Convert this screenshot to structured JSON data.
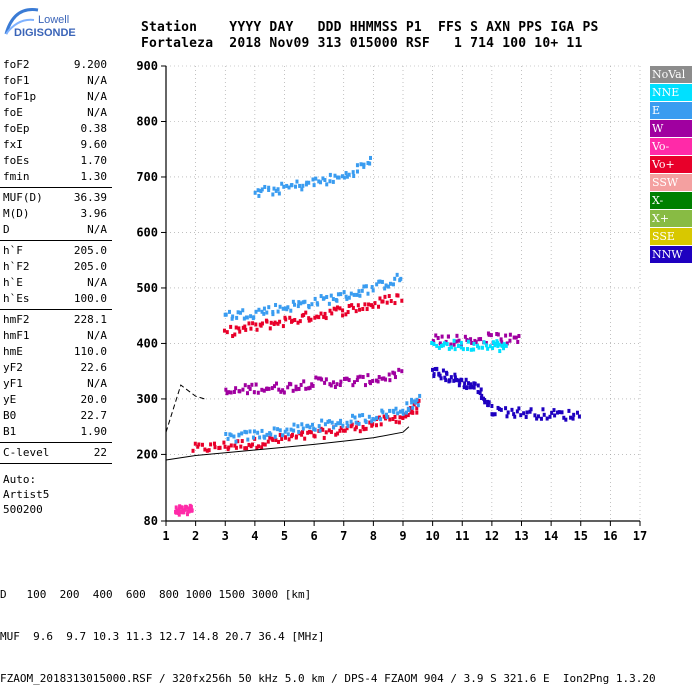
{
  "logo": {
    "line1": "Lowell",
    "line2": "DIGISONDE"
  },
  "header": {
    "labels": "Station    YYYY DAY   DDD HHMMSS P1  FFS S AXN PPS IGA PS",
    "values": "Fortaleza  2018 Nov09 313 015000 RSF   1 714 100 10+ 11"
  },
  "params": [
    {
      "name": "foF2",
      "value": "9.200"
    },
    {
      "name": "foF1",
      "value": "N/A"
    },
    {
      "name": "foF1p",
      "value": "N/A"
    },
    {
      "name": "foE",
      "value": "N/A"
    },
    {
      "name": "foEp",
      "value": "0.38"
    },
    {
      "name": "fxI",
      "value": "9.60"
    },
    {
      "name": "foEs",
      "value": "1.70"
    },
    {
      "name": "fmin",
      "value": "1.30"
    },
    {
      "name": "MUF(D)",
      "value": "36.39"
    },
    {
      "name": "M(D)",
      "value": "3.96"
    },
    {
      "name": "D",
      "value": "N/A"
    },
    {
      "name": "h`F",
      "value": "205.0"
    },
    {
      "name": "h`F2",
      "value": "205.0"
    },
    {
      "name": "h`E",
      "value": "N/A"
    },
    {
      "name": "h`Es",
      "value": "100.0"
    },
    {
      "name": "hmF2",
      "value": "228.1"
    },
    {
      "name": "hmF1",
      "value": "N/A"
    },
    {
      "name": "hmE",
      "value": "110.0"
    },
    {
      "name": "yF2",
      "value": "22.6"
    },
    {
      "name": "yF1",
      "value": "N/A"
    },
    {
      "name": "yE",
      "value": "20.0"
    },
    {
      "name": "B0",
      "value": "22.7"
    },
    {
      "name": "B1",
      "value": "1.90"
    },
    {
      "name": "C-level",
      "value": "22"
    }
  ],
  "autoscale": {
    "line1": "Auto:",
    "line2": "Artist5",
    "line3": "500200"
  },
  "legend": [
    {
      "label": "NoVal",
      "color": "#8c8c8c"
    },
    {
      "label": "NNE",
      "color": "#00e0ff"
    },
    {
      "label": "E",
      "color": "#3a9cf0"
    },
    {
      "label": "W",
      "color": "#a000a0"
    },
    {
      "label": "Vo-",
      "color": "#ff2aa8"
    },
    {
      "label": "Vo+",
      "color": "#e8002a"
    },
    {
      "label": "SSW",
      "color": "#f4a0a0"
    },
    {
      "label": "X-",
      "color": "#008000"
    },
    {
      "label": "X+",
      "color": "#88bb44"
    },
    {
      "label": "SSE",
      "color": "#d8c800"
    },
    {
      "label": "NNW",
      "color": "#1e00c0"
    }
  ],
  "chart_data": {
    "type": "scatter",
    "xlim": [
      1,
      17
    ],
    "ylim": [
      80,
      900
    ],
    "x_ticks": [
      1,
      2,
      3,
      4,
      5,
      6,
      7,
      8,
      9,
      10,
      11,
      12,
      13,
      14,
      15,
      16,
      17
    ],
    "y_ticks": [
      80,
      200,
      300,
      400,
      500,
      600,
      700,
      800,
      900
    ],
    "grid": true,
    "legend_position": "right",
    "traces": [
      {
        "name": "F-layer trace",
        "color": "#e8002a",
        "points": [
          [
            1.9,
            210
          ],
          [
            3,
            215
          ],
          [
            4,
            220
          ],
          [
            5,
            228
          ],
          [
            6,
            235
          ],
          [
            7,
            245
          ],
          [
            8,
            255
          ],
          [
            9,
            268
          ],
          [
            9.6,
            290
          ]
        ]
      },
      {
        "name": "F-layer trace",
        "color": "#3a9cf0",
        "points": [
          [
            3,
            228
          ],
          [
            4,
            235
          ],
          [
            5,
            242
          ],
          [
            6,
            250
          ],
          [
            7,
            258
          ],
          [
            8,
            268
          ],
          [
            9,
            280
          ],
          [
            9.6,
            300
          ]
        ]
      },
      {
        "name": "F-layer trace",
        "color": "#a000a0",
        "points": [
          [
            3,
            310
          ],
          [
            4,
            320
          ],
          [
            5,
            320
          ],
          [
            6,
            330
          ],
          [
            7,
            330
          ],
          [
            8,
            335
          ],
          [
            9,
            345
          ]
        ]
      },
      {
        "name": "second-hop trace",
        "color": "#e8002a",
        "points": [
          [
            3,
            420
          ],
          [
            4,
            430
          ],
          [
            5,
            440
          ],
          [
            6,
            450
          ],
          [
            7,
            460
          ],
          [
            8,
            470
          ],
          [
            9,
            485
          ]
        ]
      },
      {
        "name": "second-hop trace",
        "color": "#3a9cf0",
        "points": [
          [
            3,
            450
          ],
          [
            4,
            455
          ],
          [
            5,
            465
          ],
          [
            6,
            475
          ],
          [
            7,
            485
          ],
          [
            8,
            500
          ],
          [
            9,
            520
          ]
        ]
      },
      {
        "name": "third-hop trace",
        "color": "#3a9cf0",
        "points": [
          [
            4,
            670
          ],
          [
            5,
            680
          ],
          [
            6,
            690
          ],
          [
            7,
            700
          ],
          [
            8,
            730
          ]
        ]
      },
      {
        "name": "spread F",
        "color": "#1e00c0",
        "points": [
          [
            10,
            350
          ],
          [
            10.5,
            340
          ],
          [
            11,
            330
          ],
          [
            11.5,
            320
          ],
          [
            12,
            280
          ],
          [
            13,
            275
          ],
          [
            14,
            272
          ],
          [
            15,
            270
          ]
        ]
      },
      {
        "name": "spread F",
        "color": "#a000a0",
        "points": [
          [
            10,
            410
          ],
          [
            11,
            405
          ],
          [
            12,
            410
          ],
          [
            13,
            405
          ]
        ]
      },
      {
        "name": "spread F",
        "color": "#00e0ff",
        "points": [
          [
            10,
            400
          ],
          [
            11,
            395
          ],
          [
            12,
            400
          ],
          [
            12.5,
            390
          ]
        ]
      },
      {
        "name": "Es",
        "color": "#ff2aa8",
        "points": [
          [
            1.3,
            100
          ],
          [
            1.6,
            100
          ],
          [
            1.9,
            100
          ]
        ]
      }
    ],
    "profile": [
      [
        1.0,
        190
      ],
      [
        2,
        198
      ],
      [
        3,
        203
      ],
      [
        4,
        208
      ],
      [
        5,
        213
      ],
      [
        6,
        218
      ],
      [
        7,
        224
      ],
      [
        8,
        230
      ],
      [
        9,
        240
      ],
      [
        9.2,
        250
      ]
    ],
    "profile_lower": [
      [
        1.0,
        240
      ],
      [
        1.5,
        325
      ],
      [
        2,
        305
      ],
      [
        2.3,
        300
      ]
    ]
  },
  "footer": {
    "d_label": "D",
    "d_values": "   100  200  400  600  800 1000 1500 3000 [km]",
    "muf_label": "MUF",
    "muf_values": "  9.6  9.7 10.3 11.3 12.7 14.8 20.7 36.4 [MHz]",
    "fileinfo": "FZAOM_2018313015000.RSF / 320fx256h 50 kHz 5.0 km / DPS-4 FZAOM 904 / 3.9 S 321.6 E  Ion2Png 1.3.20"
  }
}
